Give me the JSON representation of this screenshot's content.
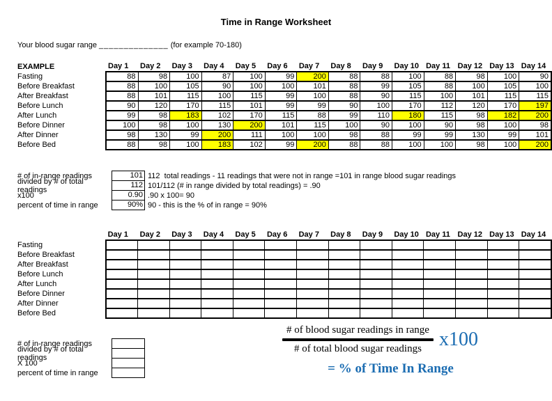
{
  "title": "Time in Range Worksheet",
  "range_line": {
    "prefix": "Your blood sugar range",
    "blank": "______________",
    "suffix": "(for example 70-180)"
  },
  "day_headers": [
    "Day 1",
    "Day 2",
    "Day 3",
    "Day 4",
    "Day 5",
    "Day 6",
    "Day 7",
    "Day 8",
    "Day 9",
    "Day 10",
    "Day 11",
    "Day 12",
    "Day 13",
    "Day 14"
  ],
  "row_labels": [
    "Fasting",
    "Before Breakfast",
    "After Breakfast",
    "Before Lunch",
    "After Lunch",
    "Before Dinner",
    "After Dinner",
    "Before Bed"
  ],
  "example_table": {
    "header": "EXAMPLE",
    "rows": [
      {
        "label": "Fasting",
        "values": [
          88,
          98,
          100,
          87,
          100,
          99,
          200,
          88,
          88,
          100,
          88,
          98,
          100,
          90
        ],
        "highlighted": [
          6
        ]
      },
      {
        "label": "Before Breakfast",
        "values": [
          88,
          100,
          105,
          90,
          100,
          100,
          101,
          88,
          99,
          105,
          88,
          100,
          105,
          100
        ],
        "highlighted": []
      },
      {
        "label": "After Breakfast",
        "values": [
          88,
          101,
          115,
          100,
          115,
          99,
          100,
          88,
          90,
          115,
          100,
          101,
          115,
          115
        ],
        "highlighted": []
      },
      {
        "label": "Before Lunch",
        "values": [
          90,
          120,
          170,
          115,
          101,
          99,
          99,
          90,
          100,
          170,
          112,
          120,
          170,
          197
        ],
        "highlighted": [
          13
        ]
      },
      {
        "label": "After Lunch",
        "values": [
          99,
          98,
          183,
          102,
          170,
          115,
          88,
          99,
          110,
          180,
          115,
          98,
          182,
          200
        ],
        "highlighted": [
          2,
          9,
          12,
          13
        ]
      },
      {
        "label": "Before Dinner",
        "values": [
          100,
          98,
          100,
          130,
          200,
          101,
          115,
          100,
          90,
          100,
          90,
          98,
          100,
          98
        ],
        "highlighted": [
          4
        ]
      },
      {
        "label": "After Dinner",
        "values": [
          98,
          130,
          99,
          200,
          111,
          100,
          100,
          98,
          88,
          99,
          99,
          130,
          99,
          101
        ],
        "highlighted": [
          3
        ]
      },
      {
        "label": "Before Bed",
        "values": [
          88,
          98,
          100,
          183,
          102,
          99,
          200,
          88,
          88,
          100,
          100,
          98,
          100,
          200
        ],
        "highlighted": [
          3,
          6,
          13
        ]
      }
    ]
  },
  "example_calc": {
    "rows": [
      {
        "label": "# of in-range readings",
        "value": "101",
        "note": "112  total readings - 11 readings that were not in range =101 in range blood sugar readings"
      },
      {
        "label": "divided by # of total readings",
        "value": "112",
        "note": "101/112 (# in range divided by total readings) = .90"
      },
      {
        "label": "x100",
        "value": "0.90",
        "note": ".90 x 100= 90"
      },
      {
        "label": "percent of time in range",
        "value": "90%",
        "note": "90 - this is the % of in range = 90%"
      }
    ]
  },
  "blank_calc": {
    "rows": [
      {
        "label": "# of in-range readings",
        "value": "",
        "note": ""
      },
      {
        "label": "divided by # of total readings",
        "value": "",
        "note": ""
      },
      {
        "label": "X 100",
        "value": "",
        "note": ""
      },
      {
        "label": "percent of time in range",
        "value": "",
        "note": ""
      }
    ]
  },
  "formula": {
    "numerator": "# of blood sugar readings in range",
    "denominator": "# of total blood sugar readings",
    "multiplier": "x100",
    "result": "= % of Time In Range"
  },
  "colors": {
    "highlight": "#FFFF00",
    "formula_blue": "#1C6DB2",
    "border": "#000000"
  }
}
